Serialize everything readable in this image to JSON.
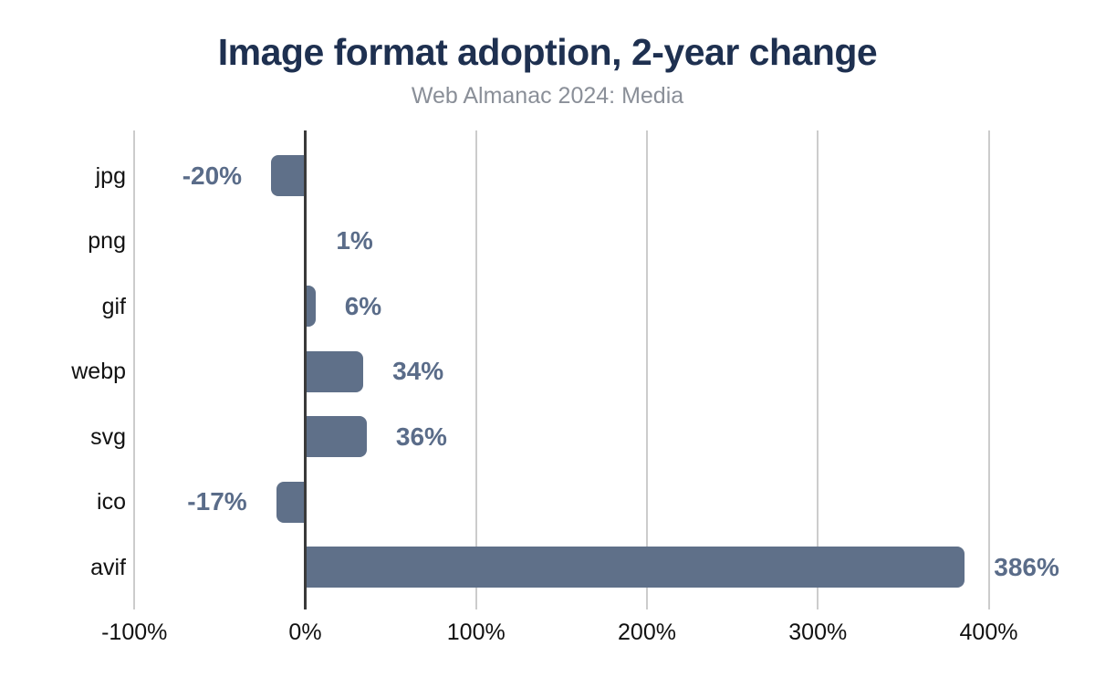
{
  "chart_data": {
    "type": "bar",
    "orientation": "horizontal",
    "title": "Image format adoption, 2-year change",
    "subtitle": "Web Almanac 2024: Media",
    "categories": [
      "jpg",
      "png",
      "gif",
      "webp",
      "svg",
      "ico",
      "avif"
    ],
    "values": [
      -20,
      1,
      6,
      34,
      36,
      -17,
      386
    ],
    "value_labels": [
      "-20%",
      "1%",
      "6%",
      "34%",
      "36%",
      "-17%",
      "386%"
    ],
    "x_axis": {
      "tick_labels": [
        "-100%",
        "0%",
        "100%",
        "200%",
        "300%",
        "400%"
      ],
      "tick_values": [
        -100,
        0,
        100,
        200,
        300,
        400
      ],
      "range": [
        -100,
        465
      ]
    },
    "grid": true,
    "legend": "none",
    "colors": {
      "bar": "#5f7089",
      "value_label": "#5a6c89",
      "title": "#1e3050",
      "subtitle": "#8a8f98",
      "axis_text": "#111111",
      "gridline": "#cccccc",
      "zero_axis": "#3a3a3a",
      "background": "#ffffff"
    }
  }
}
